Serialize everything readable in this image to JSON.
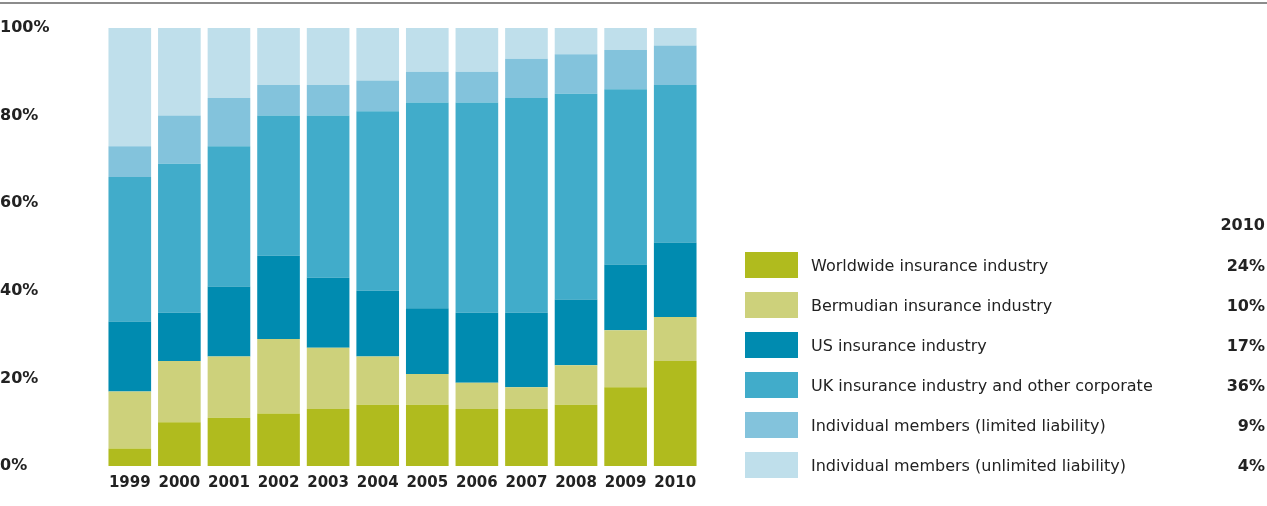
{
  "chart_data": {
    "type": "bar",
    "stacked": true,
    "categories": [
      "1999",
      "2000",
      "2001",
      "2002",
      "2003",
      "2004",
      "2005",
      "2006",
      "2007",
      "2008",
      "2009",
      "2010"
    ],
    "series": [
      {
        "name": "Worldwide insurance industry",
        "color": "#b0bb1e",
        "values": [
          4,
          10,
          11,
          12,
          13,
          14,
          14,
          13,
          13,
          14,
          18,
          24
        ]
      },
      {
        "name": "Bermudian insurance industry",
        "color": "#cdd17b",
        "values": [
          13,
          14,
          14,
          17,
          14,
          11,
          7,
          6,
          5,
          9,
          13,
          10
        ]
      },
      {
        "name": "US insurance industry",
        "color": "#008bb0",
        "values": [
          16,
          11,
          16,
          19,
          16,
          15,
          15,
          16,
          17,
          15,
          15,
          17
        ]
      },
      {
        "name": "UK insurance industry and other corporate",
        "color": "#41acca",
        "values": [
          33,
          34,
          32,
          32,
          37,
          41,
          47,
          48,
          49,
          47,
          40,
          36
        ]
      },
      {
        "name": "Individual members (limited liability)",
        "color": "#83c3dc",
        "values": [
          7,
          11,
          11,
          7,
          7,
          7,
          7,
          7,
          9,
          9,
          9,
          9
        ]
      },
      {
        "name": "Individual members (unlimited liability)",
        "color": "#bfdfeb",
        "values": [
          27,
          20,
          16,
          13,
          13,
          12,
          10,
          10,
          7,
          6,
          5,
          4
        ]
      }
    ],
    "ylim": [
      0,
      100
    ],
    "yticks": [
      {
        "value": 0,
        "label": "0%"
      },
      {
        "value": 20,
        "label": "20%"
      },
      {
        "value": 40,
        "label": "40%"
      },
      {
        "value": 60,
        "label": "60%"
      },
      {
        "value": 80,
        "label": "80%"
      },
      {
        "value": 100,
        "label": "100%"
      }
    ],
    "grid": false,
    "legend": "right",
    "legend_title": "2010",
    "annotations": [
      "24%",
      "10%",
      "17%",
      "36%",
      "9%",
      "4%"
    ]
  }
}
